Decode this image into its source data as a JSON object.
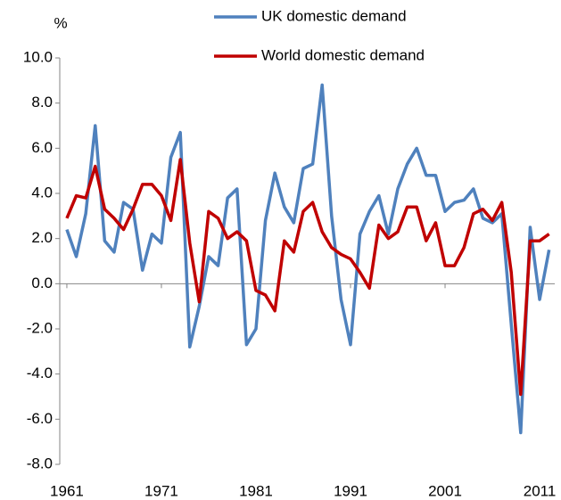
{
  "chart_data": {
    "type": "line",
    "ylabel": "%",
    "x": [
      1961,
      1962,
      1963,
      1964,
      1965,
      1966,
      1967,
      1968,
      1969,
      1970,
      1971,
      1972,
      1973,
      1974,
      1975,
      1976,
      1977,
      1978,
      1979,
      1980,
      1981,
      1982,
      1983,
      1984,
      1985,
      1986,
      1987,
      1988,
      1989,
      1990,
      1991,
      1992,
      1993,
      1994,
      1995,
      1996,
      1997,
      1998,
      1999,
      2000,
      2001,
      2002,
      2003,
      2004,
      2005,
      2006,
      2007,
      2008,
      2009,
      2010,
      2011,
      2012
    ],
    "series": [
      {
        "name": "UK domestic demand",
        "color": "#4f81bd",
        "values": [
          2.4,
          1.2,
          3.1,
          7.0,
          1.9,
          1.4,
          3.6,
          3.3,
          0.6,
          2.2,
          1.8,
          5.6,
          6.7,
          -2.8,
          -1.0,
          1.2,
          0.8,
          3.8,
          4.2,
          -2.7,
          -2.0,
          2.8,
          4.9,
          3.4,
          2.7,
          5.1,
          5.3,
          8.8,
          3.0,
          -0.7,
          -2.7,
          2.2,
          3.2,
          3.9,
          2.2,
          4.2,
          5.3,
          6.0,
          4.8,
          4.8,
          3.2,
          3.6,
          3.7,
          4.2,
          2.9,
          2.7,
          3.1,
          -1.8,
          -6.6,
          2.5,
          -0.7,
          1.5
        ]
      },
      {
        "name": "World domestic demand",
        "color": "#c00000",
        "values": [
          2.9,
          3.9,
          3.8,
          5.2,
          3.3,
          2.9,
          2.4,
          3.3,
          4.4,
          4.4,
          3.9,
          2.8,
          5.5,
          1.8,
          -0.8,
          3.2,
          2.9,
          2.0,
          2.3,
          1.9,
          -0.3,
          -0.5,
          -1.2,
          1.9,
          1.4,
          3.2,
          3.6,
          2.3,
          1.6,
          1.3,
          1.1,
          0.5,
          -0.2,
          2.6,
          2.0,
          2.3,
          3.4,
          3.4,
          1.9,
          2.7,
          0.8,
          0.8,
          1.6,
          3.1,
          3.3,
          2.8,
          3.6,
          0.5,
          -4.9,
          1.9,
          1.9,
          2.2
        ]
      }
    ],
    "xlim": [
      1960.25,
      2012.6
    ],
    "xticks": [
      1961,
      1971,
      1981,
      1991,
      2001,
      2011
    ],
    "ylim": [
      -8,
      10
    ],
    "yticks": [
      {
        "value": -8,
        "label": "-8.0"
      },
      {
        "value": -6,
        "label": "-6.0"
      },
      {
        "value": -4,
        "label": "-4.0"
      },
      {
        "value": -2,
        "label": "-2.0"
      },
      {
        "value": 0,
        "label": "0.0"
      },
      {
        "value": 2,
        "label": "2.0"
      },
      {
        "value": 4,
        "label": "4.0"
      },
      {
        "value": 6,
        "label": "6.0"
      },
      {
        "value": 8,
        "label": "8.0"
      },
      {
        "value": 10,
        "label": "10.0"
      }
    ],
    "grid": false,
    "legend": "top"
  }
}
